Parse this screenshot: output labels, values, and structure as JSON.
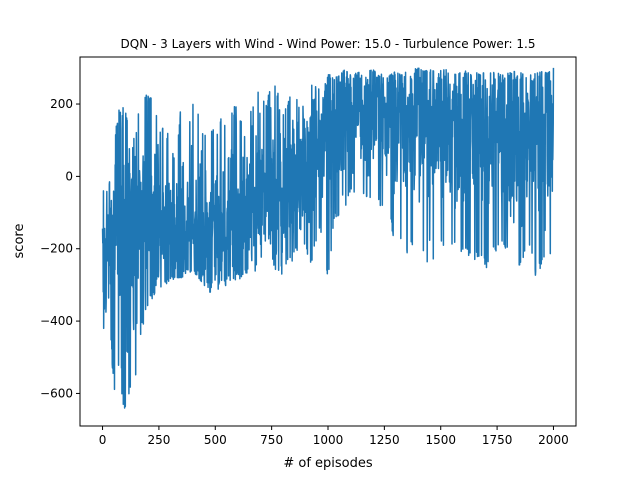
{
  "chart_data": {
    "type": "line",
    "title": "DQN - 3 Layers with Wind - Wind Power: 15.0 - Turbulence Power: 1.5",
    "xlabel": "# of episodes",
    "ylabel": "score",
    "xlim": [
      -100,
      2100
    ],
    "ylim": [
      -690,
      330
    ],
    "xticks": [
      0,
      250,
      500,
      750,
      1000,
      1250,
      1500,
      1750,
      2000
    ],
    "yticks": [
      -600,
      -400,
      -200,
      0,
      200
    ],
    "grid": false,
    "legend": "none",
    "series": [
      {
        "color": "#1f77b4",
        "x": [
          0,
          25,
          50,
          75,
          100,
          125,
          150,
          175,
          200,
          225,
          250,
          275,
          300,
          325,
          350,
          375,
          400,
          425,
          450,
          475,
          500,
          525,
          550,
          575,
          600,
          625,
          650,
          675,
          700,
          725,
          750,
          775,
          800,
          825,
          850,
          875,
          900,
          925,
          950,
          975,
          1000,
          1025,
          1050,
          1075,
          1100,
          1125,
          1150,
          1175,
          1200,
          1225,
          1250,
          1275,
          1300,
          1325,
          1350,
          1375,
          1400,
          1425,
          1450,
          1475,
          1500,
          1525,
          1550,
          1575,
          1600,
          1625,
          1650,
          1675,
          1700,
          1725,
          1750,
          1775,
          1800,
          1825,
          1850,
          1875,
          1900,
          1925,
          1950,
          1975,
          2000
        ],
        "min": [
          -460,
          -320,
          -600,
          -610,
          -645,
          -600,
          -560,
          -420,
          -370,
          -330,
          -310,
          -300,
          -290,
          -280,
          -280,
          -270,
          -260,
          -280,
          -300,
          -320,
          -320,
          -310,
          -300,
          -280,
          -290,
          -270,
          -270,
          -260,
          -280,
          -270,
          -260,
          -270,
          -270,
          -250,
          -230,
          -200,
          -200,
          -250,
          -170,
          -160,
          -310,
          -130,
          -110,
          -90,
          -60,
          -40,
          -60,
          -70,
          -70,
          -80,
          -100,
          -110,
          -240,
          -190,
          -220,
          -190,
          -210,
          -230,
          -270,
          -220,
          -190,
          -200,
          -210,
          -200,
          -220,
          -220,
          -230,
          -220,
          -260,
          -220,
          -210,
          -190,
          -220,
          -230,
          -250,
          -220,
          -210,
          -290,
          -240,
          -250,
          -200
        ],
        "max": [
          10,
          -40,
          90,
          200,
          210,
          60,
          140,
          230,
          230,
          210,
          140,
          150,
          100,
          50,
          225,
          120,
          200,
          190,
          120,
          150,
          120,
          170,
          150,
          190,
          200,
          120,
          170,
          230,
          250,
          200,
          270,
          240,
          260,
          210,
          250,
          220,
          250,
          260,
          250,
          230,
          280,
          290,
          280,
          295,
          280,
          285,
          290,
          290,
          295,
          280,
          285,
          280,
          290,
          280,
          290,
          295,
          300,
          290,
          295,
          290,
          300,
          295,
          285,
          280,
          295,
          285,
          290,
          280,
          290,
          285,
          290,
          280,
          285,
          290,
          285,
          290,
          280,
          285,
          290,
          285,
          300
        ],
        "mean": [
          -230,
          -200,
          -170,
          -180,
          -160,
          -150,
          -150,
          -140,
          -130,
          -140,
          -150,
          -150,
          -150,
          -160,
          -150,
          -150,
          -140,
          -140,
          -150,
          -150,
          -140,
          -130,
          -120,
          -120,
          -110,
          -100,
          -90,
          -80,
          -60,
          -60,
          -50,
          -40,
          -30,
          -20,
          0,
          10,
          30,
          50,
          70,
          90,
          110,
          130,
          150,
          160,
          170,
          180,
          190,
          190,
          200,
          180,
          170,
          160,
          150,
          140,
          150,
          160,
          140,
          150,
          130,
          150,
          140,
          130,
          140,
          130,
          120,
          130,
          120,
          140,
          130,
          120,
          140,
          130,
          120,
          110,
          130,
          120,
          110,
          120,
          130,
          120,
          110
        ]
      }
    ]
  }
}
